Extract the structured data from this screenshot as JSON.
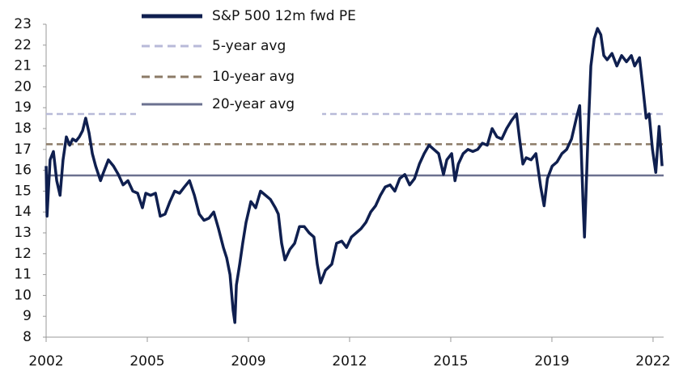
{
  "chart_data": {
    "type": "line",
    "x": [
      2002.0,
      2002.03,
      2002.13,
      2002.24,
      2002.35,
      2002.46,
      2002.56,
      2002.67,
      2002.78,
      2002.88,
      2002.99,
      2003.1,
      2003.21,
      2003.31,
      2003.42,
      2003.53,
      2003.64,
      2003.8,
      2003.9,
      2004.06,
      2004.23,
      2004.39,
      2004.55,
      2004.71,
      2004.87,
      2005.03,
      2005.19,
      2005.3,
      2005.46,
      2005.62,
      2005.78,
      2005.94,
      2006.1,
      2006.26,
      2006.42,
      2006.58,
      2006.75,
      2006.91,
      2007.07,
      2007.23,
      2007.39,
      2007.55,
      2007.71,
      2007.87,
      2007.98,
      2008.09,
      2008.19,
      2008.25,
      2008.3,
      2008.41,
      2008.51,
      2008.62,
      2008.78,
      2008.94,
      2009.1,
      2009.27,
      2009.43,
      2009.59,
      2009.69,
      2009.8,
      2009.91,
      2010.07,
      2010.23,
      2010.39,
      2010.55,
      2010.71,
      2010.87,
      2010.98,
      2011.09,
      2011.25,
      2011.46,
      2011.62,
      2011.79,
      2011.95,
      2012.11,
      2012.27,
      2012.43,
      2012.59,
      2012.75,
      2012.91,
      2013.07,
      2013.23,
      2013.39,
      2013.55,
      2013.71,
      2013.88,
      2014.04,
      2014.2,
      2014.36,
      2014.52,
      2014.68,
      2014.84,
      2015.0,
      2015.16,
      2015.27,
      2015.43,
      2015.54,
      2015.65,
      2015.81,
      2015.97,
      2016.13,
      2016.29,
      2016.45,
      2016.61,
      2016.77,
      2016.93,
      2017.09,
      2017.25,
      2017.42,
      2017.58,
      2017.68,
      2017.79,
      2017.9,
      2018.06,
      2018.22,
      2018.38,
      2018.49,
      2018.6,
      2018.76,
      2018.92,
      2019.08,
      2019.24,
      2019.4,
      2019.56,
      2019.67,
      2019.78,
      2019.83,
      2019.94,
      2020.04,
      2020.15,
      2020.26,
      2020.37,
      2020.47,
      2020.58,
      2020.74,
      2020.9,
      2021.06,
      2021.22,
      2021.38,
      2021.49,
      2021.65,
      2021.76,
      2021.87,
      2021.97,
      2022.08,
      2022.19,
      2022.3,
      2022.4
    ],
    "series": [
      {
        "name": "S&P 500 12m fwd PE",
        "color": "#0f1f4f",
        "values": [
          16.2,
          13.8,
          16.5,
          16.9,
          15.5,
          14.8,
          16.5,
          17.6,
          17.2,
          17.5,
          17.4,
          17.6,
          17.9,
          18.5,
          17.8,
          16.8,
          16.2,
          15.5,
          15.9,
          16.5,
          16.2,
          15.8,
          15.3,
          15.5,
          15.0,
          14.9,
          14.2,
          14.9,
          14.8,
          14.9,
          13.8,
          13.9,
          14.5,
          15.0,
          14.9,
          15.2,
          15.5,
          14.8,
          13.9,
          13.6,
          13.7,
          14.0,
          13.2,
          12.3,
          11.8,
          11.0,
          9.3,
          8.7,
          10.5,
          11.5,
          12.5,
          13.5,
          14.5,
          14.2,
          15.0,
          14.8,
          14.6,
          14.2,
          13.9,
          12.5,
          11.7,
          12.2,
          12.5,
          13.3,
          13.3,
          13.0,
          12.8,
          11.5,
          10.6,
          11.2,
          11.5,
          12.5,
          12.6,
          12.3,
          12.8,
          13.0,
          13.2,
          13.5,
          14.0,
          14.3,
          14.8,
          15.2,
          15.3,
          15.0,
          15.6,
          15.8,
          15.3,
          15.6,
          16.3,
          16.8,
          17.2,
          17.0,
          16.8,
          15.8,
          16.5,
          16.8,
          15.5,
          16.3,
          16.8,
          17.0,
          16.9,
          17.0,
          17.3,
          17.2,
          18.0,
          17.6,
          17.5,
          18.0,
          18.4,
          18.7,
          17.5,
          16.3,
          16.6,
          16.5,
          16.8,
          15.2,
          14.3,
          15.6,
          16.2,
          16.4,
          16.8,
          17.0,
          17.5,
          18.5,
          19.1,
          14.5,
          12.8,
          17.5,
          21.0,
          22.3,
          22.8,
          22.5,
          21.5,
          21.3,
          21.6,
          21.0,
          21.5,
          21.2,
          21.5,
          21.0,
          21.4,
          20.0,
          18.5,
          18.7,
          17.0,
          15.9,
          18.1,
          16.2
        ]
      }
    ],
    "reference_lines": [
      {
        "name": "5-year avg",
        "value": 18.7,
        "color": "#b8bad8",
        "dashed": true
      },
      {
        "name": "10-year avg",
        "value": 17.25,
        "color": "#8c7b67",
        "dashed": true
      },
      {
        "name": "20-year avg",
        "value": 15.75,
        "color": "#6b7190",
        "dashed": false
      }
    ],
    "xlim": [
      2002,
      2022.45
    ],
    "xticks": [
      {
        "value": 2002,
        "label": "2002"
      },
      {
        "value": 2005.35,
        "label": "2005"
      },
      {
        "value": 2008.7,
        "label": "2009"
      },
      {
        "value": 2012.05,
        "label": "2012"
      },
      {
        "value": 2015.4,
        "label": "2015"
      },
      {
        "value": 2018.75,
        "label": "2019"
      },
      {
        "value": 2022.1,
        "label": "2022"
      }
    ],
    "ylim": [
      8,
      23
    ],
    "yticks": [
      8,
      9,
      10,
      11,
      12,
      13,
      14,
      15,
      16,
      17,
      18,
      19,
      20,
      21,
      22,
      23
    ]
  }
}
